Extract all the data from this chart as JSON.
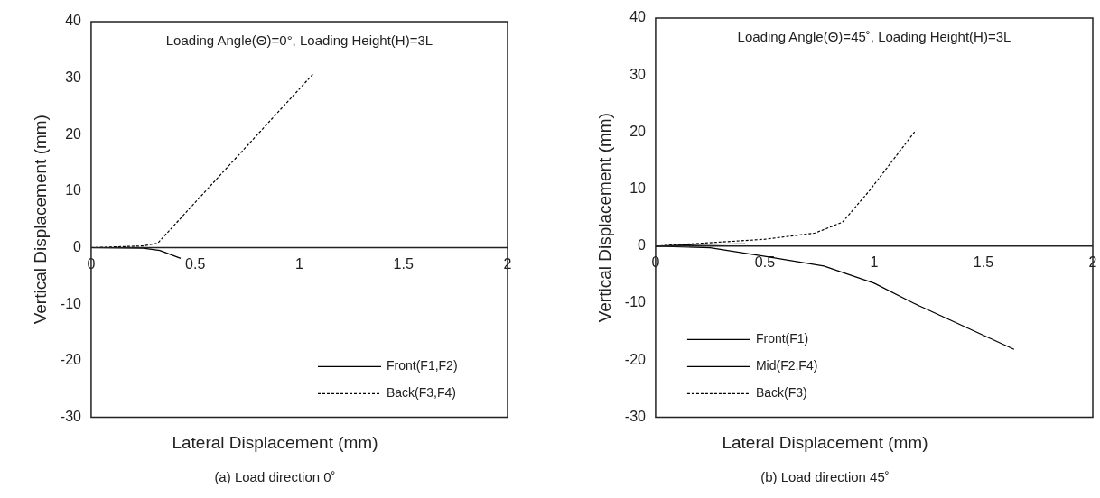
{
  "chart_data": [
    {
      "type": "line",
      "xlabel": "Lateral Displacement (mm)",
      "ylabel": "Vertical Displacement (mm)",
      "xlim": [
        0,
        2
      ],
      "xticks": [
        0,
        0.5,
        1,
        1.5,
        2
      ],
      "ylim": [
        -30,
        40
      ],
      "yticks": [
        -30,
        -20,
        -10,
        0,
        10,
        20,
        30,
        40
      ],
      "grid": false,
      "legend": "bottom right",
      "marker": "none",
      "annotations": [
        "Loading Angle(Θ)=0°, Loading Height(H)=3L",
        "(a) Load direction 0˚"
      ],
      "series": [
        {
          "name": "Front(F1,F2)",
          "color": "#000000",
          "line_style": "solid",
          "x": [
            0,
            0.25,
            0.33,
            0.43
          ],
          "values": [
            0,
            -0.1,
            -0.5,
            -1.9
          ]
        },
        {
          "name": "Back(F3,F4)",
          "color": "#000000",
          "line_style": "dashed",
          "x": [
            0,
            0.25,
            0.32,
            1.07
          ],
          "values": [
            0,
            0.3,
            0.8,
            30.9
          ]
        }
      ]
    },
    {
      "type": "line",
      "xlabel": "Lateral Displacement (mm)",
      "ylabel": "Vertical Displacement (mm)",
      "xlim": [
        0,
        2
      ],
      "xticks": [
        0,
        0.5,
        1,
        1.5,
        2
      ],
      "ylim": [
        -30,
        40
      ],
      "yticks": [
        -30,
        -20,
        -10,
        0,
        10,
        20,
        30,
        40
      ],
      "grid": false,
      "legend": "bottom left",
      "marker": "none",
      "annotations": [
        "Loading Angle(Θ)=45˚, Loading Height(H)=3L",
        "(b) Load direction 45˚"
      ],
      "series": [
        {
          "name": "Front(F1)",
          "color": "#000000",
          "line_style": "solid",
          "x": [
            0,
            0.25,
            0.5,
            0.77,
            1,
            1.18,
            1.64
          ],
          "values": [
            0,
            -0.3,
            -1.8,
            -3.5,
            -6.5,
            -10,
            -18.1
          ]
        },
        {
          "name": "Mid(F2,F4)",
          "color": "#000000",
          "line_style": "solid",
          "x": [
            0,
            0.2,
            0.41
          ],
          "values": [
            0,
            0.3,
            0.4
          ]
        },
        {
          "name": "Back(F3)",
          "color": "#000000",
          "line_style": "dashed",
          "x": [
            0,
            0.5,
            0.73,
            0.855,
            0.98,
            1.19
          ],
          "values": [
            0,
            1.2,
            2.3,
            4.2,
            9.8,
            20.3
          ]
        }
      ]
    }
  ]
}
